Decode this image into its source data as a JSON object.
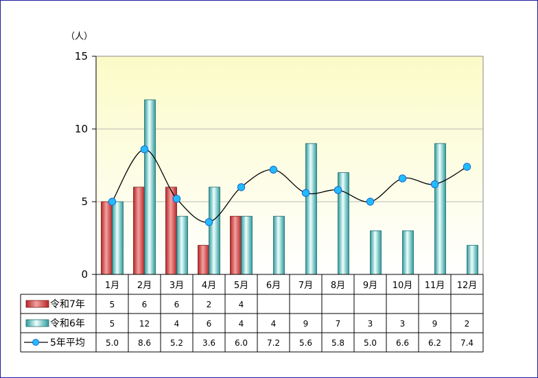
{
  "chart_data": {
    "type": "bar",
    "unit_label": "（人）",
    "categories": [
      "1月",
      "2月",
      "3月",
      "4月",
      "5月",
      "6月",
      "7月",
      "8月",
      "9月",
      "10月",
      "11月",
      "12月"
    ],
    "ylim": [
      0,
      15
    ],
    "yticks": [
      "0",
      "5",
      "10",
      "15"
    ],
    "grid": true,
    "series": [
      {
        "name": "令和7年",
        "kind": "bar",
        "color": "#cc3333",
        "values": [
          5,
          6,
          6,
          2,
          4,
          null,
          null,
          null,
          null,
          null,
          null,
          null
        ],
        "labels": [
          "5",
          "6",
          "6",
          "2",
          "4",
          "",
          "",
          "",
          "",
          "",
          "",
          ""
        ]
      },
      {
        "name": "令和6年",
        "kind": "bar",
        "color": "#3aa8a8",
        "values": [
          5,
          12,
          4,
          6,
          4,
          4,
          9,
          7,
          3,
          3,
          9,
          2
        ],
        "labels": [
          "5",
          "12",
          "4",
          "6",
          "4",
          "4",
          "9",
          "7",
          "3",
          "3",
          "9",
          "2"
        ]
      },
      {
        "name": "5年平均",
        "kind": "line",
        "color": "#000000",
        "marker_color": "#22bbff",
        "values": [
          5.0,
          8.6,
          5.2,
          3.6,
          6.0,
          7.2,
          5.6,
          5.8,
          5.0,
          6.6,
          6.2,
          7.4
        ],
        "labels": [
          "5.0",
          "8.6",
          "5.2",
          "3.6",
          "6.0",
          "7.2",
          "5.6",
          "5.8",
          "5.0",
          "6.6",
          "6.2",
          "7.4"
        ]
      }
    ]
  }
}
